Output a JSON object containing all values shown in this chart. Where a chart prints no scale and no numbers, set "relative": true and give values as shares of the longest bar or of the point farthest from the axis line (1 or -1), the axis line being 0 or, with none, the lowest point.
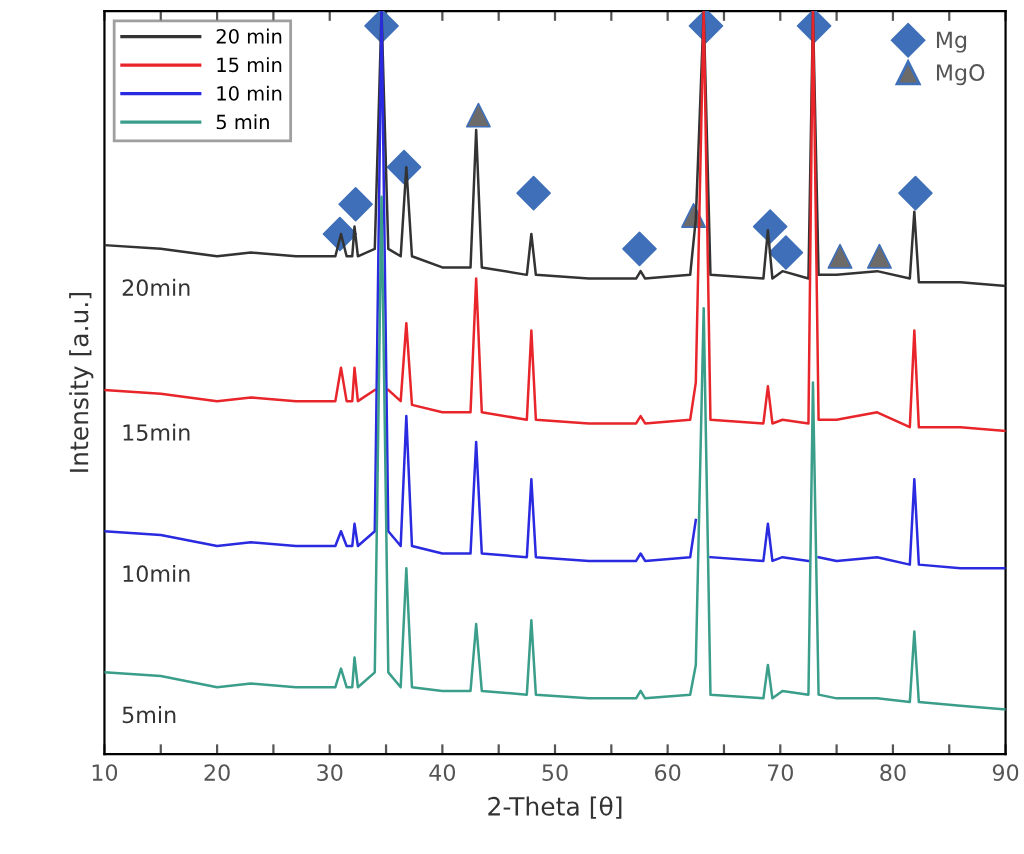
{
  "chart_data": {
    "type": "line",
    "relative": true,
    "xlabel": "2-Theta [θ]",
    "ylabel": "Intensity [a.u.]",
    "xlim": [
      10,
      90
    ],
    "xticks": [
      10,
      {
        "value": 15,
        "label": null
      },
      20,
      {
        "value": 25,
        "label": null
      },
      30,
      {
        "value": 35,
        "label": null
      },
      40,
      {
        "value": 45,
        "label": null
      },
      50,
      {
        "value": 55,
        "label": null
      },
      60,
      {
        "value": 65,
        "label": null
      },
      70,
      {
        "value": 75,
        "label": null
      },
      80,
      {
        "value": 85,
        "label": null
      },
      90
    ],
    "grid": false,
    "legend": "top left",
    "x": [
      10,
      15,
      20,
      23,
      27,
      30.5,
      31,
      31.5,
      32,
      32.2,
      32.5,
      34,
      34.6,
      35.2,
      36.3,
      36.8,
      37.3,
      40,
      42.5,
      43,
      43.5,
      47.5,
      47.9,
      48.3,
      53,
      57.2,
      57.6,
      58,
      62,
      62.5,
      63.2,
      63.8,
      68.5,
      68.9,
      69.3,
      70.2,
      72.5,
      72.9,
      73.4,
      75,
      78.6,
      81.5,
      81.9,
      82.3,
      86,
      90
    ],
    "series": [
      {
        "name": "20 min",
        "color": "#333333",
        "values": [
          0.685,
          0.68,
          0.67,
          0.675,
          0.67,
          0.67,
          0.7,
          0.67,
          0.67,
          0.71,
          0.67,
          0.68,
          1.0,
          0.68,
          0.67,
          0.79,
          0.67,
          0.655,
          0.655,
          0.84,
          0.655,
          0.645,
          0.7,
          0.645,
          0.64,
          0.64,
          0.65,
          0.64,
          0.645,
          0.72,
          1.0,
          0.645,
          0.64,
          0.705,
          0.64,
          0.65,
          0.64,
          1.0,
          0.645,
          0.645,
          0.65,
          0.64,
          0.73,
          0.635,
          0.635,
          0.63
        ]
      },
      {
        "name": "15 min",
        "color": "#e8252a",
        "values": [
          0.49,
          0.485,
          0.475,
          0.48,
          0.475,
          0.475,
          0.52,
          0.475,
          0.475,
          0.52,
          0.475,
          0.49,
          null,
          0.49,
          0.475,
          0.58,
          0.47,
          0.46,
          0.46,
          0.64,
          0.46,
          0.45,
          0.57,
          0.45,
          0.445,
          0.445,
          0.455,
          0.445,
          0.45,
          0.5,
          1.0,
          0.45,
          0.445,
          0.495,
          0.445,
          0.45,
          0.445,
          1.0,
          0.45,
          0.45,
          0.46,
          0.44,
          0.57,
          0.44,
          0.44,
          0.435
        ]
      },
      {
        "name": "10 min",
        "color": "#2a2ae0",
        "values": [
          0.3,
          0.295,
          0.28,
          0.285,
          0.28,
          0.28,
          0.3,
          0.28,
          0.28,
          0.31,
          0.28,
          0.3,
          1.0,
          0.3,
          0.28,
          0.455,
          0.28,
          0.27,
          0.27,
          0.42,
          0.27,
          0.265,
          0.37,
          0.265,
          0.26,
          0.26,
          0.27,
          0.26,
          0.265,
          0.315,
          null,
          0.265,
          0.26,
          0.31,
          0.26,
          0.265,
          0.26,
          null,
          0.265,
          0.26,
          0.265,
          0.255,
          0.37,
          0.255,
          0.25,
          0.25
        ]
      },
      {
        "name": "5 min",
        "color": "#3a9e8a",
        "values": [
          0.11,
          0.105,
          0.09,
          0.095,
          0.09,
          0.09,
          0.115,
          0.09,
          0.09,
          0.13,
          0.09,
          0.11,
          0.75,
          0.11,
          0.09,
          0.25,
          0.09,
          0.085,
          0.085,
          0.175,
          0.085,
          0.08,
          0.18,
          0.08,
          0.075,
          0.075,
          0.085,
          0.075,
          0.08,
          0.12,
          0.6,
          0.08,
          0.075,
          0.12,
          0.075,
          0.085,
          0.08,
          0.5,
          0.08,
          0.075,
          0.075,
          0.07,
          0.165,
          0.07,
          0.065,
          0.06
        ]
      },
      {
        "name": "Mg",
        "type": "scatter",
        "marker": "diamond",
        "color": "#3e6fb8",
        "x": [
          30.9,
          32.3,
          34.6,
          36.6,
          48.1,
          57.5,
          63.4,
          69.1,
          70.5,
          73.0,
          82.0
        ],
        "values": [
          0.7,
          0.74,
          0.98,
          0.79,
          0.755,
          0.68,
          0.98,
          0.71,
          0.675,
          0.98,
          0.755
        ]
      },
      {
        "name": "MgO",
        "type": "scatter",
        "marker": "triangle",
        "color": "#6d6a6a",
        "x": [
          43.2,
          62.3,
          75.3,
          78.8
        ],
        "values": [
          0.86,
          0.725,
          0.67,
          0.67
        ]
      }
    ],
    "annotations": [
      "20min",
      "15min",
      "10min",
      "5min"
    ]
  }
}
